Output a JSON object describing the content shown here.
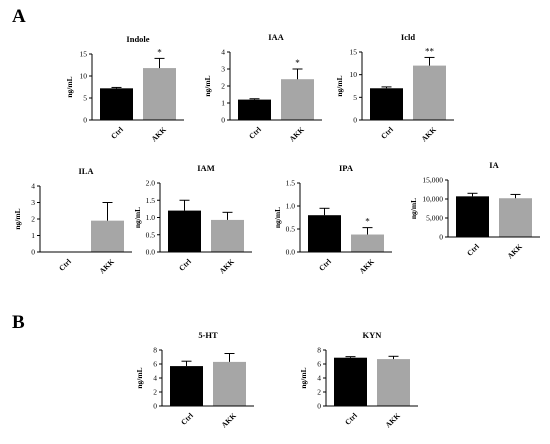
{
  "panels": [
    {
      "label": "A"
    },
    {
      "label": "B"
    }
  ],
  "colors": {
    "ctrl": "#000000",
    "akk": "#a6a6a6",
    "axis": "#000000"
  },
  "chart_data": [
    {
      "type": "bar",
      "title": "Indole",
      "ylabel": "ng/mL",
      "categories": [
        "Ctrl",
        "AKK"
      ],
      "values": [
        7.2,
        11.8
      ],
      "errors": [
        0.2,
        2.2
      ],
      "annotations": [
        "",
        "*"
      ],
      "ylim": [
        0,
        15
      ],
      "yticks": [
        0,
        5,
        10,
        15
      ],
      "yticklabels": [
        "0",
        "5",
        "10",
        "15"
      ]
    },
    {
      "type": "bar",
      "title": "IAA",
      "ylabel": "ng/mL",
      "categories": [
        "Ctrl",
        "AKK"
      ],
      "values": [
        1.2,
        2.4
      ],
      "errors": [
        0.05,
        0.6
      ],
      "annotations": [
        "",
        "*"
      ],
      "ylim": [
        0,
        4
      ],
      "yticks": [
        0,
        1,
        2,
        3,
        4
      ],
      "yticklabels": [
        "0",
        "1",
        "2",
        "3",
        "4"
      ]
    },
    {
      "type": "bar",
      "title": "Icld",
      "ylabel": "ng/mL",
      "categories": [
        "Ctrl",
        "AKK"
      ],
      "values": [
        7.0,
        12.0
      ],
      "errors": [
        0.3,
        1.8
      ],
      "annotations": [
        "",
        "**"
      ],
      "ylim": [
        0,
        15
      ],
      "yticks": [
        0,
        5,
        10,
        15
      ],
      "yticklabels": [
        "0",
        "5",
        "10",
        "15"
      ]
    },
    {
      "type": "bar",
      "title": "ILA",
      "ylabel": "ng/mL",
      "categories": [
        "Ctrl",
        "AKK"
      ],
      "values": [
        0,
        1.9
      ],
      "errors": [
        0,
        1.1
      ],
      "annotations": [
        "",
        ""
      ],
      "ylim": [
        0,
        4
      ],
      "yticks": [
        0,
        1,
        2,
        3,
        4
      ],
      "yticklabels": [
        "0",
        "1",
        "2",
        "3",
        "4"
      ]
    },
    {
      "type": "bar",
      "title": "IAM",
      "ylabel": "ng/mL",
      "categories": [
        "Ctrl",
        "AKK"
      ],
      "values": [
        1.2,
        0.93
      ],
      "errors": [
        0.3,
        0.22
      ],
      "annotations": [
        "",
        ""
      ],
      "ylim": [
        0,
        2.0
      ],
      "yticks": [
        0,
        0.5,
        1.0,
        1.5,
        2.0
      ],
      "yticklabels": [
        "0.0",
        "0.5",
        "1.0",
        "1.5",
        "2.0"
      ]
    },
    {
      "type": "bar",
      "title": "IPA",
      "ylabel": "ng/mL",
      "categories": [
        "Ctrl",
        "AKK"
      ],
      "values": [
        0.8,
        0.38
      ],
      "errors": [
        0.15,
        0.15
      ],
      "annotations": [
        "",
        "*"
      ],
      "ylim": [
        0,
        1.5
      ],
      "yticks": [
        0,
        0.5,
        1.0,
        1.5
      ],
      "yticklabels": [
        "0.0",
        "0.5",
        "1.0",
        "1.5"
      ]
    },
    {
      "type": "bar",
      "title": "IA",
      "ylabel": "ng/mL",
      "categories": [
        "Ctrl",
        "AKK"
      ],
      "values": [
        10700,
        10200
      ],
      "errors": [
        800,
        1000
      ],
      "annotations": [
        "",
        ""
      ],
      "ylim": [
        0,
        15000
      ],
      "yticks": [
        0,
        5000,
        10000,
        15000
      ],
      "yticklabels": [
        "0",
        "5,000",
        "10,000",
        "15,000"
      ]
    },
    {
      "type": "bar",
      "title": "5-HT",
      "ylabel": "ng/mL",
      "categories": [
        "Ctrl",
        "AKK"
      ],
      "values": [
        5.7,
        6.3
      ],
      "errors": [
        0.7,
        1.2
      ],
      "annotations": [
        "",
        ""
      ],
      "ylim": [
        0,
        8
      ],
      "yticks": [
        0,
        2,
        4,
        6,
        8
      ],
      "yticklabels": [
        "0",
        "2",
        "4",
        "6",
        "8"
      ]
    },
    {
      "type": "bar",
      "title": "KYN",
      "ylabel": "ng/mL",
      "categories": [
        "Ctrl",
        "AKK"
      ],
      "values": [
        6.9,
        6.7
      ],
      "errors": [
        0.15,
        0.4
      ],
      "annotations": [
        "",
        ""
      ],
      "ylim": [
        0,
        8
      ],
      "yticks": [
        0,
        2,
        4,
        6,
        8
      ],
      "yticklabels": [
        "0",
        "2",
        "4",
        "6",
        "8"
      ]
    }
  ]
}
